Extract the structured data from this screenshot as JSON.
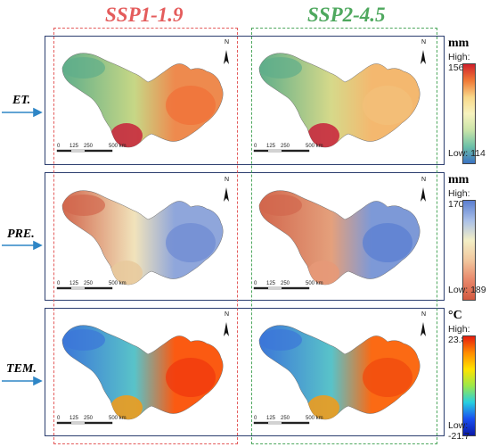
{
  "columns": [
    {
      "title": "SSP1-1.9",
      "color": "#e45c5c"
    },
    {
      "title": "SSP2-4.5",
      "color": "#4ea85e"
    }
  ],
  "rows": [
    {
      "label": "ET.",
      "unit": "mm",
      "high": "High: 1569",
      "low": "Low: 114",
      "ramp": [
        "#d0202a",
        "#f07a36",
        "#f8d88a",
        "#f7f3bf",
        "#c9e4a8",
        "#6cc0a8",
        "#3b73c2"
      ]
    },
    {
      "label": "PRE.",
      "unit": "mm",
      "high": "High: 1706",
      "low": "Low: 189",
      "ramp": [
        "#5b7fd1",
        "#aac0e8",
        "#f3efc6",
        "#f1c79e",
        "#e8876a",
        "#d3593f"
      ]
    },
    {
      "label": "TEM.",
      "unit": "°C",
      "high": "High: 23.8",
      "low": "Low: -21.7",
      "ramp": [
        "#e61c0e",
        "#ff8c00",
        "#ffe300",
        "#9be84a",
        "#27cfe0",
        "#1a4ff0",
        "#0a1aa8"
      ]
    }
  ],
  "map_palettes": {
    "et_a": {
      "west": "#5fae8a",
      "center": "#c7d786",
      "east": "#ee8a4e",
      "south": "#c8203a",
      "hot": "#f07038"
    },
    "et_b": {
      "west": "#5fae8a",
      "center": "#d6d98a",
      "east": "#f4b86f",
      "south": "#c8203a",
      "hot": "#f3c07a"
    },
    "pre_a": {
      "west": "#d2674d",
      "center": "#f1e3bb",
      "east": "#8fa6db",
      "south": "#e7c99c",
      "hot": "#6f8bd3"
    },
    "pre_b": {
      "west": "#d2674d",
      "center": "#e4a07c",
      "east": "#7d99d7",
      "south": "#e69978",
      "hot": "#5b7fd1"
    },
    "tem_a": {
      "west": "#3c76d8",
      "center": "#59c3c9",
      "east": "#fb5a12",
      "south": "#f69a14",
      "hot": "#f0380e"
    },
    "tem_b": {
      "west": "#3c76d8",
      "center": "#59c3c9",
      "east": "#fb6a14",
      "south": "#f69a14",
      "hot": "#f04a0e"
    }
  },
  "scale_bar": {
    "ticks": [
      "0",
      "125",
      "250",
      "500 km"
    ]
  },
  "north_label": "N"
}
